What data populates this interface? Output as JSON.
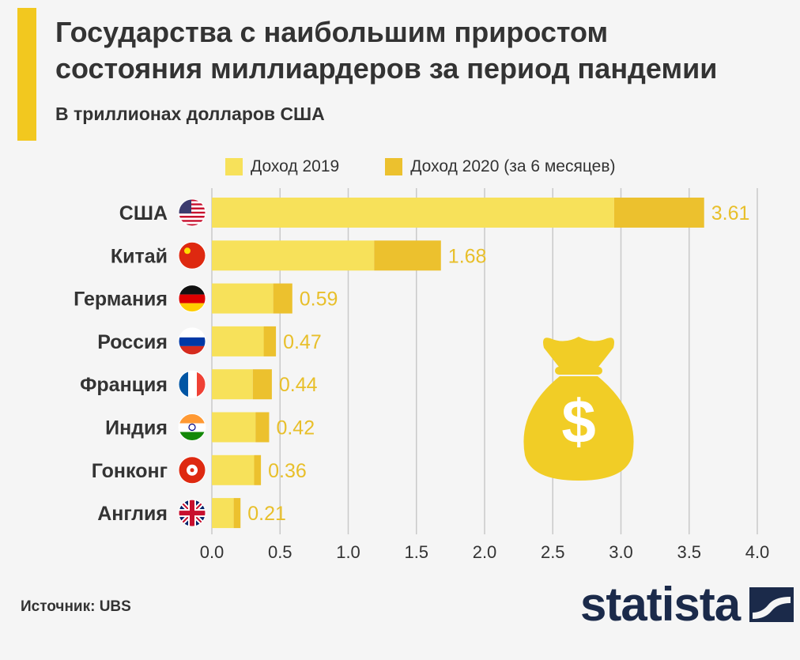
{
  "header": {
    "title_lines": [
      "Государства с наибольшим приростом",
      "состояния миллиардеров за период пандемии"
    ],
    "subtitle": "В триллионах долларов США"
  },
  "legend": {
    "items": [
      {
        "label": "Доход 2019",
        "color": "#f7e15a"
      },
      {
        "label": "Доход 2020 (за 6 месяцев)",
        "color": "#ecc12e"
      }
    ]
  },
  "chart_data": {
    "type": "bar",
    "orientation": "horizontal",
    "stacked": true,
    "categories": [
      "США",
      "Китай",
      "Германия",
      "Россия",
      "Франция",
      "Индия",
      "Гонконг",
      "Англия"
    ],
    "series": [
      {
        "name": "Доход 2019",
        "values": [
          2.95,
          1.19,
          0.45,
          0.38,
          0.3,
          0.32,
          0.31,
          0.16
        ]
      },
      {
        "name": "Доход 2020 (за 6 месяцев)",
        "values": [
          0.66,
          0.49,
          0.14,
          0.09,
          0.14,
          0.1,
          0.05,
          0.05
        ]
      }
    ],
    "total_labels": [
      "3.61",
      "1.68",
      "0.59",
      "0.47",
      "0.44",
      "0.42",
      "0.36",
      "0.21"
    ],
    "xticks": [
      "0.0",
      "0.5",
      "1.0",
      "1.5",
      "2.0",
      "2.5",
      "3.0",
      "3.5",
      "4.0"
    ],
    "xlim": [
      0,
      4
    ],
    "grid": true,
    "legend_position": "top"
  },
  "flags": [
    "us-flag-icon",
    "china-flag-icon",
    "germany-flag-icon",
    "russia-flag-icon",
    "france-flag-icon",
    "india-flag-icon",
    "hongkong-flag-icon",
    "uk-flag-icon"
  ],
  "footer": {
    "source": "Источник: UBS",
    "logo_text": "statista"
  },
  "colors": {
    "accent": "#f2c81f",
    "value_label": "#e8bf2a",
    "grid": "#c9c9c9",
    "logo": "#1b2a4a",
    "money_bag": "#f1cd26"
  }
}
